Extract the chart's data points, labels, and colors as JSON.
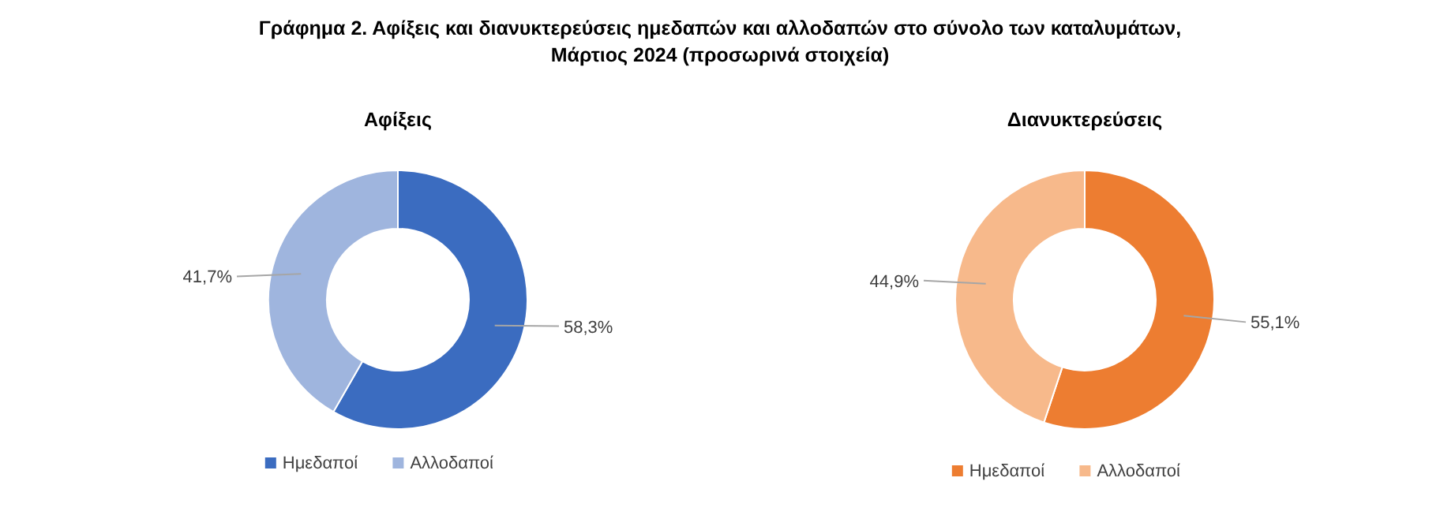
{
  "chart_data": [
    {
      "type": "donut",
      "title": "Γράφημα 2. Αφίξεις και διανυκτερεύσεις ημεδαπών και αλλοδαπών στο σύνολο των καταλυμάτων,\nΜάρτιος 2024  (προσωρινά στοιχεία)",
      "subtitle": "Αφίξεις",
      "categories": [
        "Ημεδαποί",
        "Αλλοδαποί"
      ],
      "values": [
        58.3,
        41.7
      ],
      "colors": [
        "#3b6cc0",
        "#9fb5de"
      ],
      "value_labels": [
        "58,3%",
        "41,7%"
      ],
      "legend": "bottom"
    },
    {
      "type": "donut",
      "title": "Διανυκτερεύσεις",
      "categories": [
        "Ημεδαποί",
        "Αλλοδαποί"
      ],
      "values": [
        55.1,
        44.9
      ],
      "colors": [
        "#ed7d31",
        "#f7b98b"
      ],
      "value_labels": [
        "55,1%",
        "44,9%"
      ],
      "legend": "bottom"
    }
  ]
}
